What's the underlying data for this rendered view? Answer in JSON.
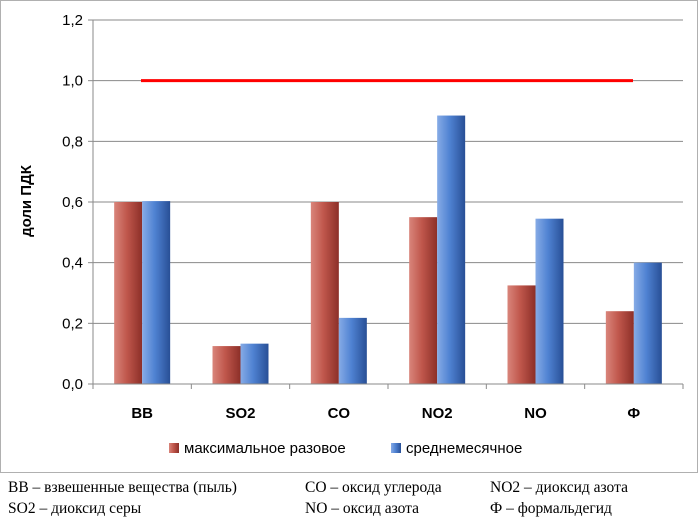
{
  "chart_data": {
    "type": "bar",
    "categories": [
      "ВВ",
      "SO2",
      "CO",
      "NO2",
      "NO",
      "Ф"
    ],
    "series": [
      {
        "name": "максимальное разовое",
        "values": [
          0.6,
          0.125,
          0.6,
          0.55,
          0.325,
          0.24
        ],
        "color": "#b5473f"
      },
      {
        "name": "среднемесячное",
        "values": [
          0.603,
          0.133,
          0.218,
          0.885,
          0.545,
          0.4
        ],
        "color": "#3b6fc4"
      }
    ],
    "ylabel": "доли ПДК",
    "xlabel": "",
    "ylim": [
      0,
      1.2
    ],
    "yticks": [
      "0,0",
      "0,2",
      "0,4",
      "0,6",
      "0,8",
      "1,0",
      "1,2"
    ],
    "reference_line": {
      "value": 1.0,
      "color": "#ff0000"
    },
    "grid": true,
    "legend_position": "bottom"
  },
  "footnotes": [
    "ВВ – взвешенные вещества (пыль)",
    "CO – оксид углерода",
    "NO2 – диоксид азота",
    "SO2 – диоксид серы",
    "NO – оксид азота",
    "Ф – формальдегид"
  ]
}
